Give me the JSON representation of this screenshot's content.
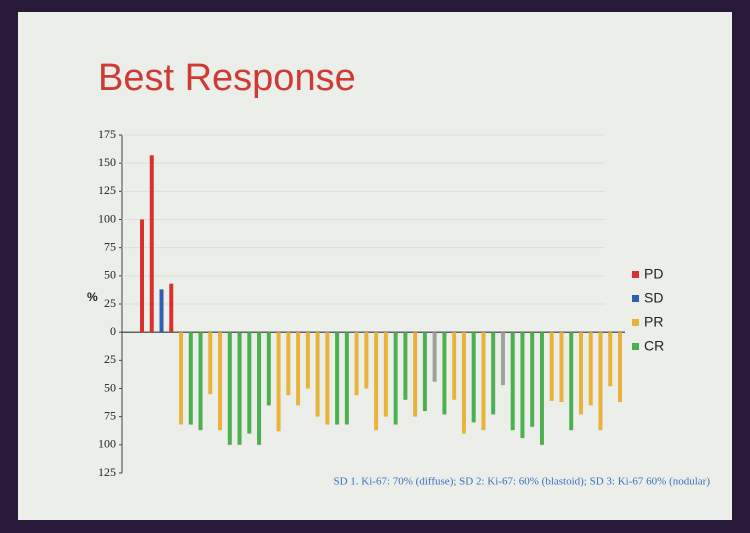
{
  "chart_data": {
    "type": "waterfall",
    "title": "Best Response",
    "y_label": "%",
    "values": [
      100,
      157,
      38,
      43,
      -82,
      -82,
      -87,
      -55,
      -87,
      -100,
      -100,
      -90,
      -100,
      -65,
      -88,
      -56,
      -65,
      -50,
      -75,
      -82,
      -82,
      -82,
      -56,
      -50,
      -87,
      -75,
      -82,
      -60,
      -75,
      -70,
      -44,
      -73,
      -60,
      -90,
      -80,
      -87,
      -73,
      -47,
      -87,
      -94,
      -84,
      -100,
      -61,
      -62,
      -87,
      -73,
      -65,
      -87,
      -48,
      -62
    ],
    "colors": [
      "#d9312f",
      "#d9312f",
      "#2f5fb3",
      "#d9312f",
      "#e8b33a",
      "#4caf50",
      "#4caf50",
      "#e8b33a",
      "#e8b33a",
      "#4caf50",
      "#4caf50",
      "#4caf50",
      "#4caf50",
      "#4caf50",
      "#e8b33a",
      "#e8b33a",
      "#e8b33a",
      "#e8b33a",
      "#e8b33a",
      "#e8b33a",
      "#4caf50",
      "#4caf50",
      "#e8b33a",
      "#e8b33a",
      "#e8b33a",
      "#e8b33a",
      "#4caf50",
      "#4caf50",
      "#e8b33a",
      "#4caf50",
      "#a0a0a0",
      "#4caf50",
      "#e8b33a",
      "#e8b33a",
      "#4caf50",
      "#e8b33a",
      "#4caf50",
      "#a0a0a0",
      "#4caf50",
      "#4caf50",
      "#4caf50",
      "#4caf50",
      "#e8b33a",
      "#e8b33a",
      "#4caf50",
      "#e8b33a",
      "#e8b33a",
      "#e8b33a",
      "#e8b33a",
      "#e8b33a"
    ],
    "legend": [
      {
        "name": "PD",
        "color": "#d9312f"
      },
      {
        "name": "SD",
        "color": "#2f5fb3"
      },
      {
        "name": "PR",
        "color": "#e8b33a"
      },
      {
        "name": "CR",
        "color": "#4caf50"
      }
    ],
    "ylim": [
      -125,
      175
    ],
    "yticks": [
      175,
      150,
      125,
      100,
      75,
      50,
      25,
      0,
      {
        "value": -25,
        "label": "25"
      },
      {
        "value": -50,
        "label": "50"
      },
      {
        "value": -75,
        "label": "75"
      },
      {
        "value": -100,
        "label": "100"
      },
      {
        "value": -125,
        "label": "125"
      }
    ],
    "grid": true,
    "footnote": "SD 1. Ki-67: 70% (diffuse); SD 2: Ki-67: 60% (blastoid); SD 3: Ki-67 60% (nodular)"
  }
}
